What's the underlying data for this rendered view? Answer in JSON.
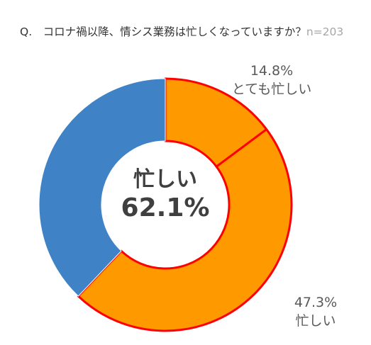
{
  "chart_data": {
    "type": "pie",
    "title": "Q.　コロナ禍以降、情シス業務は忙しくなっていますか？",
    "sample": "n=203",
    "center": {
      "label": "忙しい",
      "value": "62.1%"
    },
    "categories": [
      "とても忙しい",
      "忙しい",
      ""
    ],
    "values": [
      14.8,
      47.3,
      37.9
    ],
    "data_labels": [
      "14.8%",
      "47.3%",
      ""
    ],
    "colors": [
      "#ff9900",
      "#ff9900",
      "#3f82c6"
    ],
    "highlight_border": "#ff0000"
  }
}
